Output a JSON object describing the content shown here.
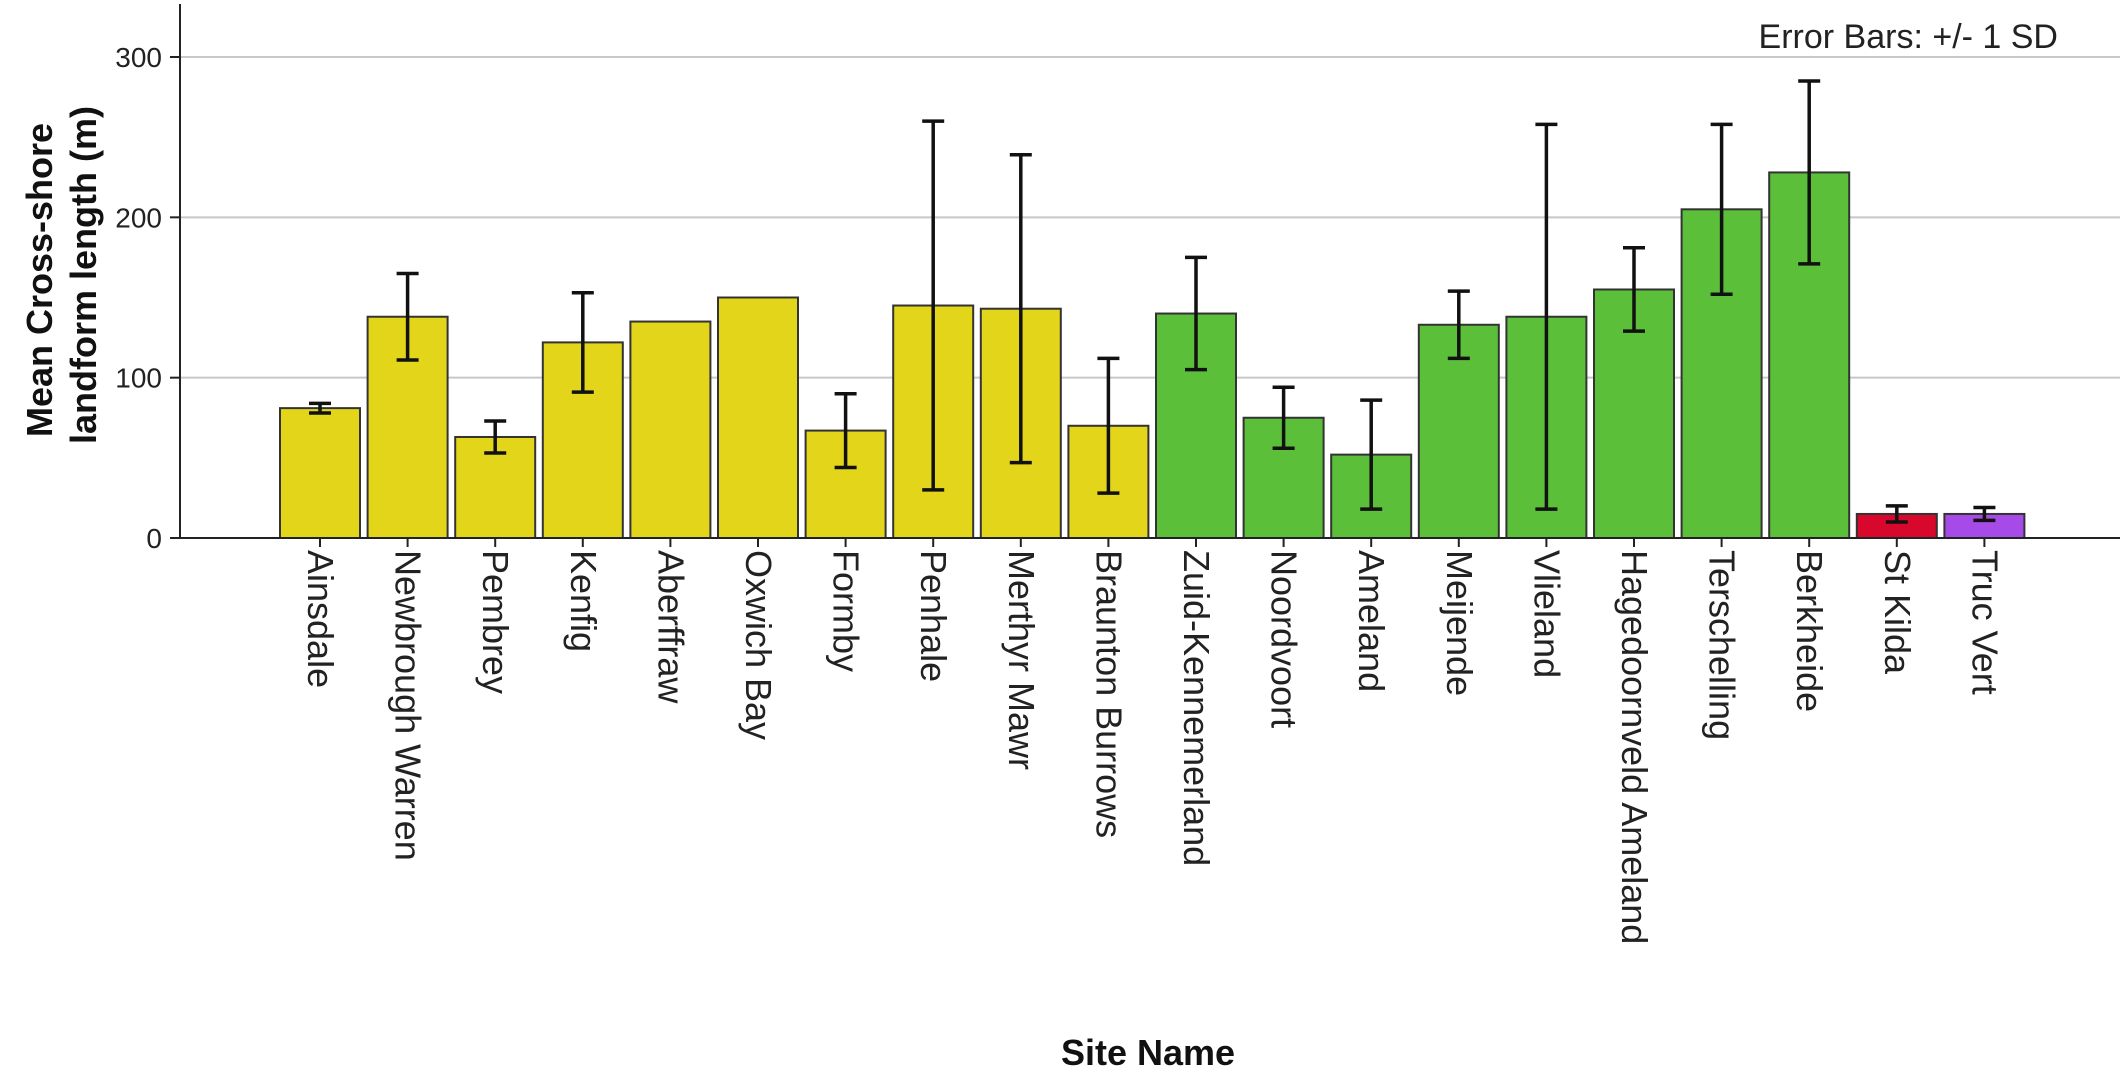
{
  "chart_data": {
    "type": "bar",
    "ylabel_lines": [
      "Mean Cross-shore",
      "landform length (m)"
    ],
    "xlabel": "Site Name",
    "annotation": "Error Bars: +/- 1 SD",
    "ylim": [
      0,
      335
    ],
    "yticks": [
      0,
      100,
      200,
      300
    ],
    "grid": "horizontal",
    "categories": [
      "Ainsdale",
      "Newbrough Warren",
      "Pembrey",
      "Kenfig",
      "Aberffraw",
      "Oxwich Bay",
      "Formby",
      "Penhale",
      "Merthyr Mawr",
      "Braunton Burrows",
      "Zuid-Kennemerland",
      "Noordvoort",
      "Ameland",
      "Meijende",
      "Vlieland",
      "Hagedoornveld Ameland",
      "Terschelling",
      "Berkheide",
      "St Kilda",
      "Truc Vert"
    ],
    "values": [
      81,
      138,
      63,
      122,
      135,
      150,
      67,
      145,
      143,
      70,
      140,
      75,
      52,
      133,
      138,
      155,
      205,
      228,
      15,
      15
    ],
    "error": [
      3,
      27,
      10,
      31,
      null,
      null,
      23,
      115,
      96,
      42,
      35,
      19,
      34,
      21,
      120,
      26,
      53,
      57,
      5,
      4
    ],
    "colors": [
      "#e2d51a",
      "#e2d51a",
      "#e2d51a",
      "#e2d51a",
      "#e2d51a",
      "#e2d51a",
      "#e2d51a",
      "#e2d51a",
      "#e2d51a",
      "#e2d51a",
      "#5cbf3a",
      "#5cbf3a",
      "#5cbf3a",
      "#5cbf3a",
      "#5cbf3a",
      "#5cbf3a",
      "#5cbf3a",
      "#5cbf3a",
      "#d8082d",
      "#a64be8"
    ]
  }
}
